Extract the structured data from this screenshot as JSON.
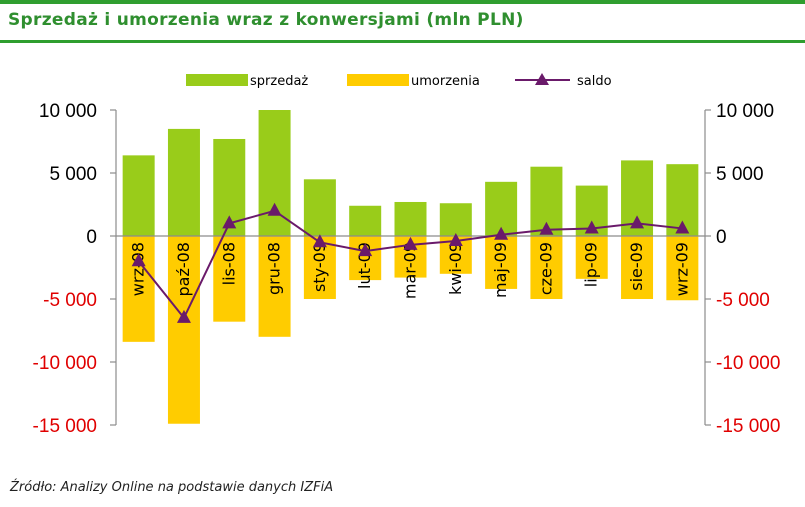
{
  "header": {
    "title": "Sprzedaż i umorzenia wraz z konwersjami (mln PLN)"
  },
  "footer": {
    "source": "Źródło: Analizy Online na podstawie danych IZFiA"
  },
  "colors": {
    "accent": "#2f9e2f",
    "sprzedaz": "#99cc1a",
    "umorzenia": "#ffcc00",
    "saldo": "#6a1a6a",
    "negative_tick": "#e00000"
  },
  "chart_data": {
    "type": "bar",
    "categories": [
      "wrz-08",
      "paź-08",
      "lis-08",
      "gru-08",
      "sty-09",
      "lut-09",
      "mar-09",
      "kwi-09",
      "maj-09",
      "cze-09",
      "lip-09",
      "sie-09",
      "wrz-09"
    ],
    "series": [
      {
        "name": "sprzedaż",
        "type": "bar",
        "values": [
          6400,
          8500,
          7700,
          10000,
          4500,
          2400,
          2700,
          2600,
          4300,
          5500,
          4000,
          6000,
          5700
        ]
      },
      {
        "name": "umorzenia",
        "type": "bar",
        "values": [
          -8400,
          -14900,
          -6800,
          -8000,
          -5000,
          -3500,
          -3300,
          -3000,
          -4200,
          -5000,
          -3400,
          -5000,
          -5100
        ]
      },
      {
        "name": "saldo",
        "type": "line",
        "marker": "triangle",
        "values": [
          -2000,
          -6500,
          1000,
          2000,
          -500,
          -1200,
          -700,
          -400,
          100,
          500,
          600,
          1000,
          600
        ]
      }
    ],
    "ylim": [
      -15000,
      10000
    ],
    "yticks": [
      10000,
      5000,
      0,
      -5000,
      -10000,
      -15000
    ],
    "ytick_labels": [
      "10 000",
      "5 000",
      "0",
      "-5 000",
      "-10 000",
      "-15 000"
    ],
    "secondary_axis": true,
    "legend": {
      "position": "top",
      "entries": [
        "sprzedaż",
        "umorzenia",
        "saldo"
      ]
    },
    "grid": false
  }
}
